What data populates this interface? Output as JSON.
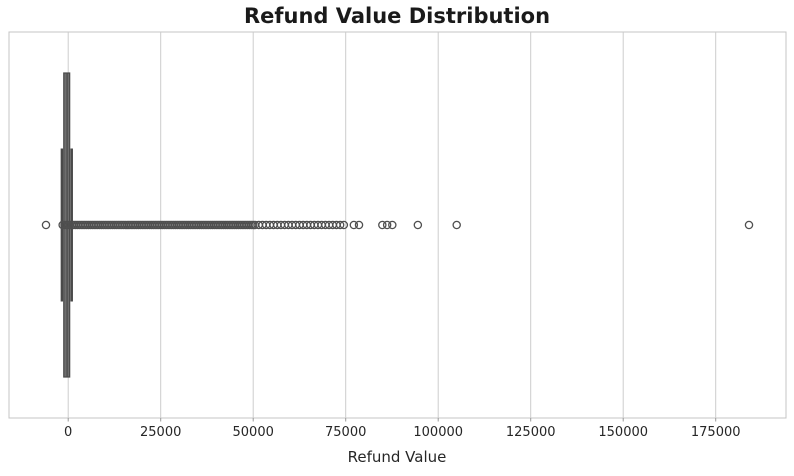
{
  "chart_data": {
    "type": "boxplot",
    "orientation": "horizontal",
    "title": "Refund Value Distribution",
    "xlabel": "Refund Value",
    "ylabel": "",
    "legend": "none",
    "grid": "vertical-gridlines-on",
    "xlim": [
      -16000,
      194000
    ],
    "ylim": [
      -0.5,
      0.5
    ],
    "xticks": [
      0,
      25000,
      50000,
      75000,
      100000,
      125000,
      150000,
      175000
    ],
    "xtick_labels": [
      "0",
      "25000",
      "50000",
      "75000",
      "100000",
      "125000",
      "150000",
      "175000"
    ],
    "series": [
      {
        "name": "Refund Value",
        "stats": {
          "whisker_low": -1700,
          "q1": -1200,
          "median": -300,
          "q3": 400,
          "whisker_high": 950
        },
        "outliers_isolated": [
          -6000,
          77200,
          78600,
          84900,
          86200,
          87600,
          94500,
          105000,
          184000
        ],
        "outliers_dense_band": {
          "min": -1500,
          "max": 50500,
          "approx_step": 500,
          "note": "hundreds of overlapping flier circles forming a solid band"
        },
        "outliers_chain": {
          "min": 51500,
          "max": 74500,
          "approx_step": 1000,
          "note": "closely overlapping flier circles forming a chain"
        }
      }
    ],
    "colors": {
      "box_fill": "#6e6e6e",
      "box_edge": "#4a4a4a",
      "flier_edge": "#4f4f4f",
      "grid": "#cccccc",
      "spine": "#c4c4c4",
      "tick": "#999999",
      "text": "#262626",
      "title": "#1a1a1a",
      "background": "#ffffff"
    }
  }
}
